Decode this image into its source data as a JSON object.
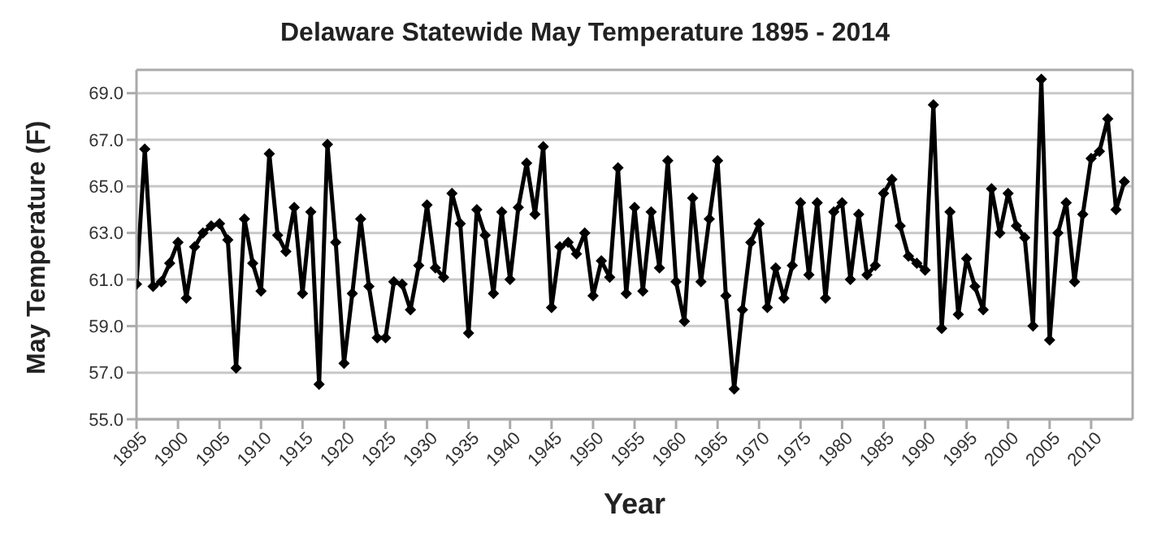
{
  "chart_data": {
    "type": "line",
    "title": "Delaware Statewide May Temperature 1895 - 2014",
    "xlabel": "Year",
    "ylabel": "May Temperature (F)",
    "x": [
      1895,
      1896,
      1897,
      1898,
      1899,
      1900,
      1901,
      1902,
      1903,
      1904,
      1905,
      1906,
      1907,
      1908,
      1909,
      1910,
      1911,
      1912,
      1913,
      1914,
      1915,
      1916,
      1917,
      1918,
      1919,
      1920,
      1921,
      1922,
      1923,
      1924,
      1925,
      1926,
      1927,
      1928,
      1929,
      1930,
      1931,
      1932,
      1933,
      1934,
      1935,
      1936,
      1937,
      1938,
      1939,
      1940,
      1941,
      1942,
      1943,
      1944,
      1945,
      1946,
      1947,
      1948,
      1949,
      1950,
      1951,
      1952,
      1953,
      1954,
      1955,
      1956,
      1957,
      1958,
      1959,
      1960,
      1961,
      1962,
      1963,
      1964,
      1965,
      1966,
      1967,
      1968,
      1969,
      1970,
      1971,
      1972,
      1973,
      1974,
      1975,
      1976,
      1977,
      1978,
      1979,
      1980,
      1981,
      1982,
      1983,
      1984,
      1985,
      1986,
      1987,
      1988,
      1989,
      1990,
      1991,
      1992,
      1993,
      1994,
      1995,
      1996,
      1997,
      1998,
      1999,
      2000,
      2001,
      2002,
      2003,
      2004,
      2005,
      2006,
      2007,
      2008,
      2009,
      2010,
      2011,
      2012,
      2013,
      2014
    ],
    "series": [
      {
        "color": "#000000",
        "values": [
          60.8,
          66.6,
          60.7,
          60.9,
          61.7,
          62.6,
          60.2,
          62.4,
          63.0,
          63.3,
          63.4,
          62.7,
          57.2,
          63.6,
          61.7,
          60.5,
          66.4,
          62.9,
          62.2,
          64.1,
          60.4,
          63.9,
          56.5,
          66.8,
          62.6,
          57.4,
          60.4,
          63.6,
          60.7,
          58.5,
          58.5,
          60.9,
          60.8,
          59.7,
          61.6,
          64.2,
          61.5,
          61.1,
          64.7,
          63.4,
          58.7,
          64.0,
          62.9,
          60.4,
          63.9,
          61.0,
          64.1,
          66.0,
          63.8,
          66.7,
          59.8,
          62.4,
          62.6,
          62.1,
          63.0,
          60.3,
          61.8,
          61.1,
          65.8,
          60.4,
          64.1,
          60.5,
          63.9,
          61.5,
          66.1,
          60.9,
          59.2,
          64.5,
          60.9,
          63.6,
          66.1,
          60.3,
          56.3,
          59.7,
          62.6,
          63.4,
          59.8,
          61.5,
          60.2,
          61.6,
          64.3,
          61.2,
          64.3,
          60.2,
          63.9,
          64.3,
          61.0,
          63.8,
          61.2,
          61.6,
          64.7,
          65.3,
          63.3,
          62.0,
          61.7,
          61.4,
          68.5,
          58.9,
          63.9,
          59.5,
          61.9,
          60.7,
          59.7,
          64.9,
          63.0,
          64.7,
          63.3,
          62.8,
          59.0,
          69.6,
          58.4,
          63.0,
          64.3,
          60.9,
          63.8,
          66.2,
          66.5,
          67.9,
          64.0,
          65.2
        ]
      }
    ],
    "xlim": [
      1895,
      2015
    ],
    "xticks": [
      1895,
      1900,
      1905,
      1910,
      1915,
      1920,
      1925,
      1930,
      1935,
      1940,
      1945,
      1950,
      1955,
      1960,
      1965,
      1970,
      1975,
      1980,
      1985,
      1990,
      1995,
      2000,
      2005,
      2010
    ],
    "ylim": [
      55,
      70
    ],
    "yticks": [
      {
        "value": 55,
        "label": "55.0"
      },
      {
        "value": 57,
        "label": "57.0"
      },
      {
        "value": 59,
        "label": "59.0"
      },
      {
        "value": 61,
        "label": "61.0"
      },
      {
        "value": 63,
        "label": "63.0"
      },
      {
        "value": 65,
        "label": "65.0"
      },
      {
        "value": 67,
        "label": "67.0"
      },
      {
        "value": 69,
        "label": "69.0"
      }
    ],
    "grid": "y",
    "marker": "diamond",
    "line_style": "solid",
    "legend": false
  }
}
